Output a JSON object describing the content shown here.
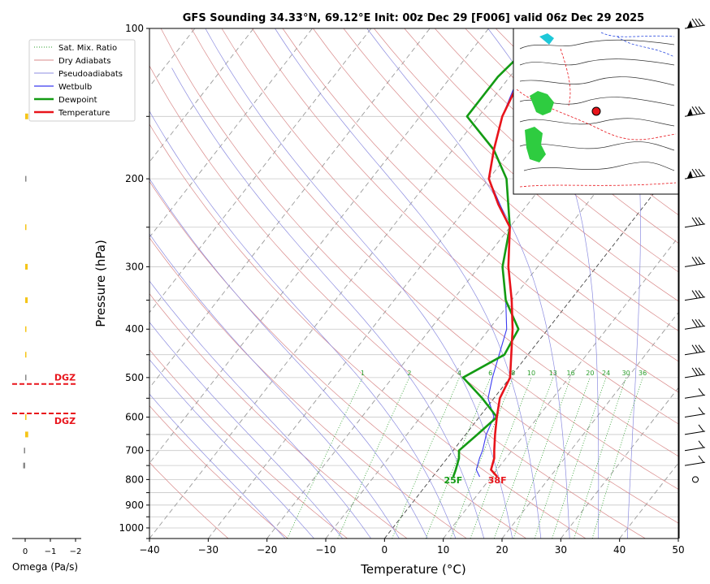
{
  "chart_data": {
    "type": "line",
    "title": "GFS Sounding 34.33°N, 69.12°E Init: 00z Dec 29 [F006] valid 06z Dec 29 2025",
    "xlabel": "Temperature (°C)",
    "ylabel": "Pressure (hPa)",
    "xlim": [
      -40,
      50
    ],
    "ylim": [
      1050,
      100
    ],
    "y_scale": "log",
    "x_ticks": [
      "−40",
      "−30",
      "−20",
      "−10",
      "0",
      "10",
      "20",
      "30",
      "40",
      "50"
    ],
    "x_tick_values": [
      -40,
      -30,
      -20,
      -10,
      0,
      10,
      20,
      30,
      40,
      50
    ],
    "y_ticks": [
      "100",
      "200",
      "300",
      "400",
      "500",
      "600",
      "700",
      "800",
      "900",
      "1000"
    ],
    "y_tick_values": [
      100,
      200,
      300,
      400,
      500,
      600,
      700,
      800,
      900,
      1000
    ],
    "legend_position": "top-left",
    "legend": [
      "Sat. Mix. Ratio",
      "Dry Adiabats",
      "Pseudoadiabats",
      "Wetbulb",
      "Dewpoint",
      "Temperature"
    ],
    "series": [
      {
        "name": "Temperature",
        "color": "#e8141b",
        "points": [
          [
            11,
            790
          ],
          [
            9,
            765
          ],
          [
            8,
            725
          ],
          [
            7,
            700
          ],
          [
            5,
            650
          ],
          [
            3,
            600
          ],
          [
            1,
            550
          ],
          [
            0,
            500
          ],
          [
            -6,
            400
          ],
          [
            -10,
            350
          ],
          [
            -15,
            300
          ],
          [
            -20,
            250
          ],
          [
            -25,
            225
          ],
          [
            -30,
            200
          ],
          [
            -33,
            175
          ],
          [
            -36,
            150
          ],
          [
            -38,
            125
          ],
          [
            -39.5,
            100
          ]
        ]
      },
      {
        "name": "Dewpoint",
        "color": "#139b13",
        "points": [
          [
            3.5,
            790
          ],
          [
            3,
            765
          ],
          [
            2,
            725
          ],
          [
            1,
            700
          ],
          [
            2,
            650
          ],
          [
            3,
            600
          ],
          [
            -2,
            550
          ],
          [
            -8,
            500
          ],
          [
            -4,
            450
          ],
          [
            -5,
            400
          ],
          [
            -11,
            350
          ],
          [
            -16,
            300
          ],
          [
            -20,
            250
          ],
          [
            -27,
            200
          ],
          [
            -33,
            175
          ],
          [
            -42,
            150
          ],
          [
            -42,
            125
          ],
          [
            -40,
            100
          ]
        ]
      },
      {
        "name": "Wetbulb",
        "color": "#3b3bf0",
        "points": [
          [
            8,
            790
          ],
          [
            6.5,
            765
          ],
          [
            5.5,
            725
          ],
          [
            5,
            700
          ],
          [
            3.5,
            650
          ],
          [
            2.5,
            600
          ],
          [
            -1,
            550
          ],
          [
            -3,
            500
          ],
          [
            -7,
            400
          ],
          [
            -11,
            350
          ],
          [
            -16,
            300
          ],
          [
            -20,
            250
          ],
          [
            -30,
            200
          ],
          [
            -33,
            175
          ],
          [
            -36,
            150
          ],
          [
            -38.5,
            125
          ],
          [
            -40,
            100
          ]
        ]
      }
    ],
    "surface_labels": {
      "temperature": "38F",
      "dewpoint": "25F"
    },
    "mixing_ratio_labels": [
      "1",
      "2",
      "4",
      "6",
      "8",
      "10",
      "13",
      "16",
      "20",
      "24",
      "30",
      "36"
    ],
    "mixing_ratio_values": [
      1,
      2,
      4,
      6,
      8,
      10,
      13,
      16,
      20,
      24,
      30,
      36
    ],
    "omega": {
      "label": "Omega (Pa/s)",
      "ticks": [
        "0",
        "−1",
        "−2"
      ],
      "tick_values": [
        0,
        -1,
        -2
      ],
      "dgz_label": "DGZ",
      "dgz_levels": [
        515,
        590
      ],
      "bars": [
        {
          "p": 150,
          "value": -0.12,
          "color": "#f5c518"
        },
        {
          "p": 200,
          "value": -0.01,
          "color": "#888888"
        },
        {
          "p": 250,
          "value": -0.02,
          "color": "#f5c518"
        },
        {
          "p": 300,
          "value": -0.1,
          "color": "#f5c518"
        },
        {
          "p": 350,
          "value": -0.1,
          "color": "#f5c518"
        },
        {
          "p": 400,
          "value": -0.02,
          "color": "#f5c518"
        },
        {
          "p": 450,
          "value": -0.02,
          "color": "#f5c518"
        },
        {
          "p": 500,
          "value": -0.02,
          "color": "#888888"
        },
        {
          "p": 600,
          "value": -0.05,
          "color": "#f5c518"
        },
        {
          "p": 650,
          "value": -0.12,
          "color": "#f5c518"
        },
        {
          "p": 700,
          "value": 0.05,
          "color": "#888888"
        },
        {
          "p": 750,
          "value": 0.08,
          "color": "#888888"
        }
      ]
    },
    "wind_barb_levels": [
      100,
      150,
      200,
      250,
      300,
      350,
      400,
      450,
      500,
      550,
      600,
      650,
      700,
      750,
      800
    ]
  },
  "colors": {
    "dry_adiabat": "#d98a8a",
    "pseudoadiabat": "#8c8ce0",
    "mixing_ratio": "#2a9d2a",
    "isotherm": "#9a9a9a",
    "isobar": "#c8c8c8",
    "dgz": "#e8141b"
  }
}
